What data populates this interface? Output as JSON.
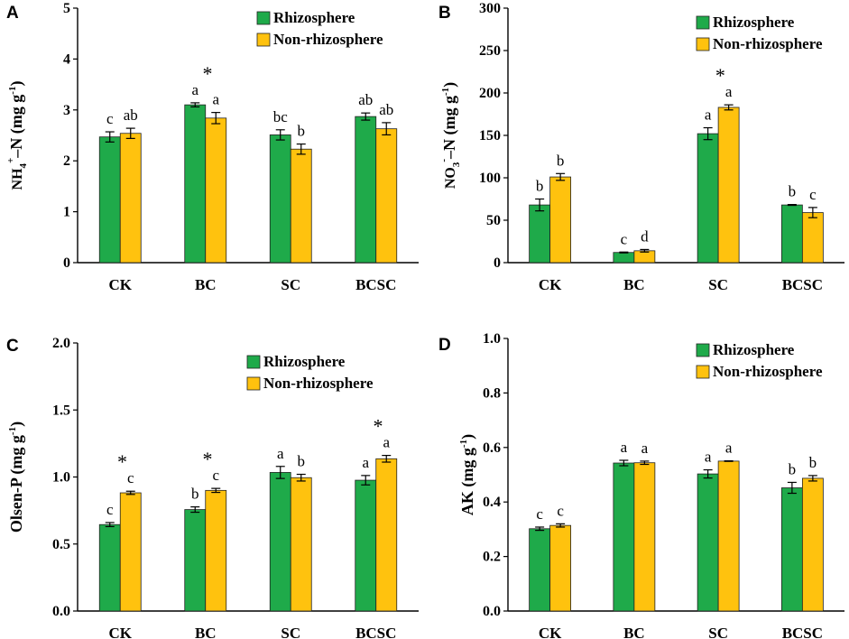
{
  "colors": {
    "rhizosphere": "#1faa4a",
    "non_rhizosphere": "#ffc20e"
  },
  "chart_data": [
    {
      "panel": "A",
      "type": "bar",
      "ylabel_parts": [
        "NH",
        "4",
        "+",
        "–N (mg g",
        "-1",
        ")"
      ],
      "ylim": [
        0,
        5
      ],
      "yticks": [
        0,
        1,
        2,
        3,
        4,
        5
      ],
      "ytick_labels": [
        "0",
        "1",
        "2",
        "3",
        "4",
        "5"
      ],
      "categories": [
        "CK",
        "BC",
        "SC",
        "BCSC"
      ],
      "legend": [
        "Rhizosphere",
        "Non-rhizosphere"
      ],
      "series": [
        {
          "name": "Rhizosphere",
          "values": [
            2.47,
            3.1,
            2.51,
            2.87
          ],
          "errors": [
            0.1,
            0.04,
            0.1,
            0.07
          ],
          "letters": [
            "c",
            "a",
            "bc",
            "ab"
          ]
        },
        {
          "name": "Non-rhizosphere",
          "values": [
            2.54,
            2.84,
            2.23,
            2.63
          ],
          "errors": [
            0.1,
            0.11,
            0.1,
            0.12
          ],
          "letters": [
            "ab",
            "a",
            "b",
            "ab"
          ]
        }
      ],
      "stars": [
        {
          "category": "BC",
          "label": "*"
        }
      ]
    },
    {
      "panel": "B",
      "type": "bar",
      "ylabel_parts": [
        "NO",
        "3",
        "-",
        "–N (mg g",
        "-1",
        ")"
      ],
      "ylim": [
        0,
        300
      ],
      "yticks": [
        0,
        50,
        100,
        150,
        200,
        250,
        300
      ],
      "ytick_labels": [
        "0",
        "50",
        "100",
        "150",
        "200",
        "250",
        "300"
      ],
      "categories": [
        "CK",
        "BC",
        "SC",
        "BCSC"
      ],
      "legend": [
        "Rhizosphere",
        "Non-rhizosphere"
      ],
      "series": [
        {
          "name": "Rhizosphere",
          "values": [
            68,
            12,
            152,
            68
          ],
          "errors": [
            7,
            0.5,
            7,
            0.5
          ],
          "letters": [
            "b",
            "c",
            "a",
            "b"
          ]
        },
        {
          "name": "Non-rhizosphere",
          "values": [
            101,
            14,
            183,
            59
          ],
          "errors": [
            4,
            1.5,
            3,
            6
          ],
          "letters": [
            "b",
            "d",
            "a",
            "c"
          ]
        }
      ],
      "stars": [
        {
          "category": "SC",
          "label": "*"
        }
      ]
    },
    {
      "panel": "C",
      "type": "bar",
      "ylabel_parts": [
        "Olsen-P (mg g",
        "-1",
        ")"
      ],
      "ylim": [
        0,
        2
      ],
      "yticks": [
        0,
        0.5,
        1.0,
        1.5,
        2.0
      ],
      "ytick_labels": [
        "0.0",
        "0.5",
        "1.0",
        "1.5",
        "2.0"
      ],
      "categories": [
        "CK",
        "BC",
        "SC",
        "BCSC"
      ],
      "legend": [
        "Rhizosphere",
        "Non-rhizosphere"
      ],
      "series": [
        {
          "name": "Rhizosphere",
          "values": [
            0.645,
            0.757,
            1.034,
            0.976
          ],
          "errors": [
            0.015,
            0.02,
            0.045,
            0.035
          ],
          "letters": [
            "c",
            "b",
            "a",
            "a"
          ]
        },
        {
          "name": "Non-rhizosphere",
          "values": [
            0.882,
            0.9,
            0.995,
            1.136
          ],
          "errors": [
            0.012,
            0.015,
            0.025,
            0.025
          ],
          "letters": [
            "c",
            "c",
            "b",
            "a"
          ]
        }
      ],
      "stars": [
        {
          "category": "CK",
          "label": "*"
        },
        {
          "category": "BC",
          "label": "*"
        },
        {
          "category": "BCSC",
          "label": "*"
        }
      ]
    },
    {
      "panel": "D",
      "type": "bar",
      "ylabel_parts": [
        "AK (mg g",
        "-1",
        ")"
      ],
      "ylim": [
        0,
        1
      ],
      "yticks": [
        0,
        0.2,
        0.4,
        0.6,
        0.8,
        1.0
      ],
      "ytick_labels": [
        "0.0",
        "0.2",
        "0.4",
        "0.6",
        "0.8",
        "1.0"
      ],
      "categories": [
        "CK",
        "BC",
        "SC",
        "BCSC"
      ],
      "legend": [
        "Rhizosphere",
        "Non-rhizosphere"
      ],
      "series": [
        {
          "name": "Rhizosphere",
          "values": [
            0.302,
            0.543,
            0.503,
            0.452
          ],
          "errors": [
            0.006,
            0.01,
            0.015,
            0.02
          ],
          "letters": [
            "c",
            "a",
            "a",
            "b"
          ]
        },
        {
          "name": "Non-rhizosphere",
          "values": [
            0.314,
            0.544,
            0.55,
            0.487
          ],
          "errors": [
            0.006,
            0.006,
            0.001,
            0.01
          ],
          "letters": [
            "c",
            "a",
            "a",
            "b"
          ]
        }
      ],
      "stars": []
    }
  ]
}
